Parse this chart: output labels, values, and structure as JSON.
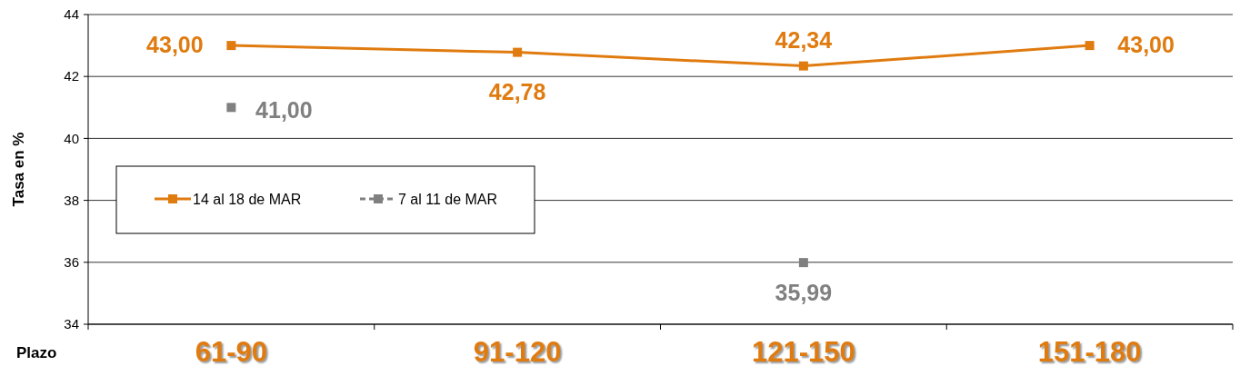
{
  "chart_data": {
    "type": "line",
    "xlabel": "Plazo",
    "ylabel": "Tasa en %",
    "categories": [
      "61-90",
      "91-120",
      "121-150",
      "151-180"
    ],
    "series": [
      {
        "name": "14 al 18 de MAR",
        "color": "#e07b10",
        "values": [
          43.0,
          42.78,
          42.34,
          43.0
        ],
        "value_labels": [
          "43,00",
          "42,78",
          "42,34",
          "43,00"
        ],
        "line_style": "solid"
      },
      {
        "name": "7 al 11 de MAR",
        "color": "#808080",
        "values": [
          41.0,
          null,
          35.99,
          null
        ],
        "value_labels": [
          "41,00",
          null,
          "35,99",
          null
        ],
        "line_style": "dashed"
      }
    ],
    "ylim": [
      34,
      44
    ],
    "yticks": [
      34,
      36,
      38,
      40,
      42,
      44
    ],
    "grid": "y",
    "legend": "left",
    "marker": "square"
  }
}
